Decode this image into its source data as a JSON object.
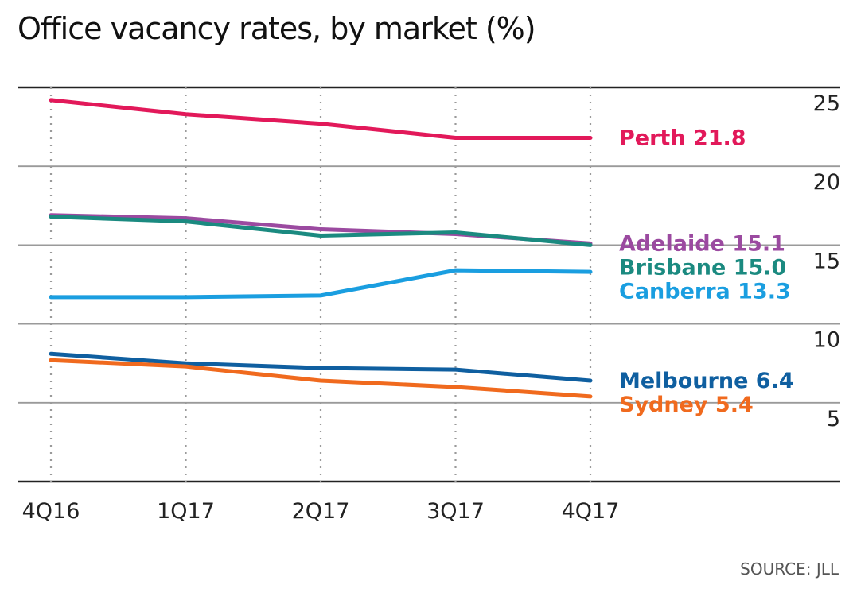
{
  "chart_data": {
    "type": "line",
    "title": "Office vacancy rates, by market (%)",
    "source": "SOURCE: JLL",
    "categories": [
      "4Q16",
      "1Q17",
      "2Q17",
      "3Q17",
      "4Q17"
    ],
    "ylim": [
      0,
      25
    ],
    "yticks": [
      5,
      10,
      15,
      20,
      25
    ],
    "series": [
      {
        "name": "Perth",
        "label": "Perth 21.8",
        "color": "#e2195a",
        "values": [
          24.2,
          23.3,
          22.7,
          21.8,
          21.8
        ]
      },
      {
        "name": "Adelaide",
        "label": "Adelaide 15.1",
        "color": "#9b4aa0",
        "values": [
          16.9,
          16.7,
          16.0,
          15.7,
          15.1
        ]
      },
      {
        "name": "Brisbane",
        "label": "Brisbane 15.0",
        "color": "#1b8a80",
        "values": [
          16.8,
          16.5,
          15.6,
          15.8,
          15.0
        ]
      },
      {
        "name": "Canberra",
        "label": "Canberra 13.3",
        "color": "#1a9ee0",
        "values": [
          11.7,
          11.7,
          11.8,
          13.4,
          13.3
        ]
      },
      {
        "name": "Melbourne",
        "label": "Melbourne 6.4",
        "color": "#0f5fa0",
        "values": [
          8.1,
          7.5,
          7.2,
          7.1,
          6.4
        ]
      },
      {
        "name": "Sydney",
        "label": "Sydney 5.4",
        "color": "#f06a1e",
        "values": [
          7.7,
          7.3,
          6.4,
          6.0,
          5.4
        ]
      }
    ]
  }
}
